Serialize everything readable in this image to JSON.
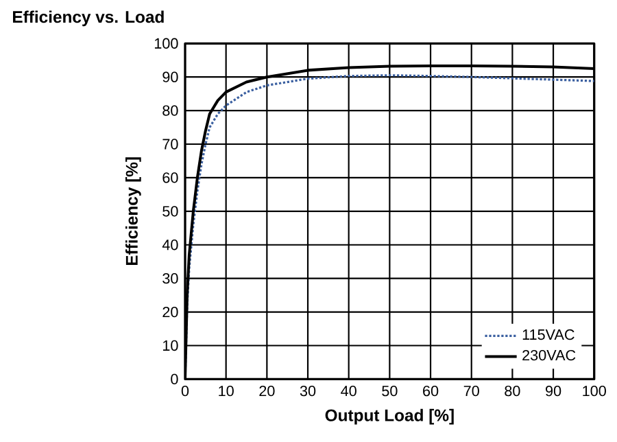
{
  "chart_data": {
    "type": "line",
    "title": "Efficiency vs. Load",
    "xlabel": "Output Load [%]",
    "ylabel": "Efficiency [%]",
    "xlim": [
      0,
      100
    ],
    "ylim": [
      0,
      100
    ],
    "xticks": [
      0,
      10,
      20,
      30,
      40,
      50,
      60,
      70,
      80,
      90,
      100
    ],
    "yticks": [
      0,
      10,
      20,
      30,
      40,
      50,
      60,
      70,
      80,
      90,
      100
    ],
    "grid": true,
    "legend": "bottom right",
    "marker": "none",
    "series": [
      {
        "name": "115VAC",
        "color": "#3a5fa0",
        "line_style": "dotted",
        "x": [
          0,
          0.5,
          1,
          2,
          3,
          4,
          5,
          6,
          8,
          10,
          15,
          20,
          30,
          40,
          50,
          60,
          70,
          80,
          90,
          100
        ],
        "values": [
          0,
          22,
          33,
          46,
          56,
          64,
          70,
          75,
          79,
          81.5,
          85.5,
          87.5,
          89.5,
          90.3,
          90.5,
          90.3,
          90,
          89.6,
          89.2,
          88.8
        ]
      },
      {
        "name": "230VAC",
        "color": "#000000",
        "line_style": "solid",
        "x": [
          0,
          0.5,
          1,
          2,
          3,
          4,
          5,
          6,
          8,
          10,
          15,
          20,
          30,
          40,
          50,
          60,
          70,
          80,
          90,
          100
        ],
        "values": [
          0,
          25,
          37,
          50,
          60,
          68,
          74,
          79,
          83,
          85.5,
          88.5,
          90,
          92,
          92.8,
          93.2,
          93.3,
          93.3,
          93.2,
          93,
          92.5
        ]
      }
    ]
  }
}
